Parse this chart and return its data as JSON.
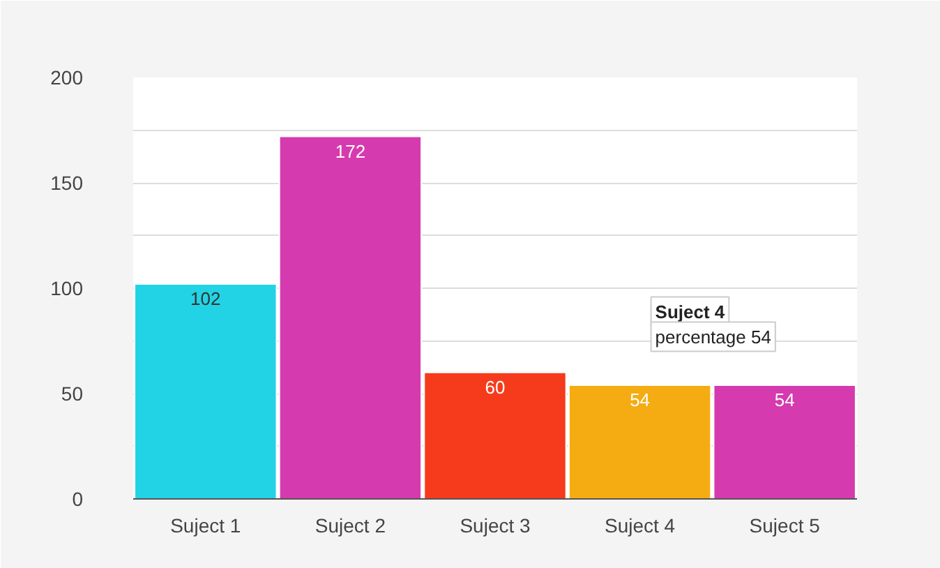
{
  "chart_data": {
    "type": "bar",
    "categories": [
      "Suject 1",
      "Suject 2",
      "Suject 3",
      "Suject 4",
      "Suject 5"
    ],
    "values": [
      102,
      172,
      60,
      54,
      54
    ],
    "colors": [
      "#22d3e6",
      "#d63aaf",
      "#f53b1c",
      "#f5ac12",
      "#d63aaf"
    ],
    "ylim": [
      0,
      200
    ],
    "yticks": [
      0,
      {
        "value": 25,
        "label": null
      },
      50,
      {
        "value": 75,
        "label": null
      },
      100,
      {
        "value": 125,
        "label": null
      },
      150,
      {
        "value": 175,
        "label": null
      },
      200
    ],
    "grid": "y",
    "data_labels": true,
    "annotations": [
      {
        "text": "Suject 4\npercentage 54",
        "x": "Suject 4",
        "y": 54
      }
    ]
  }
}
